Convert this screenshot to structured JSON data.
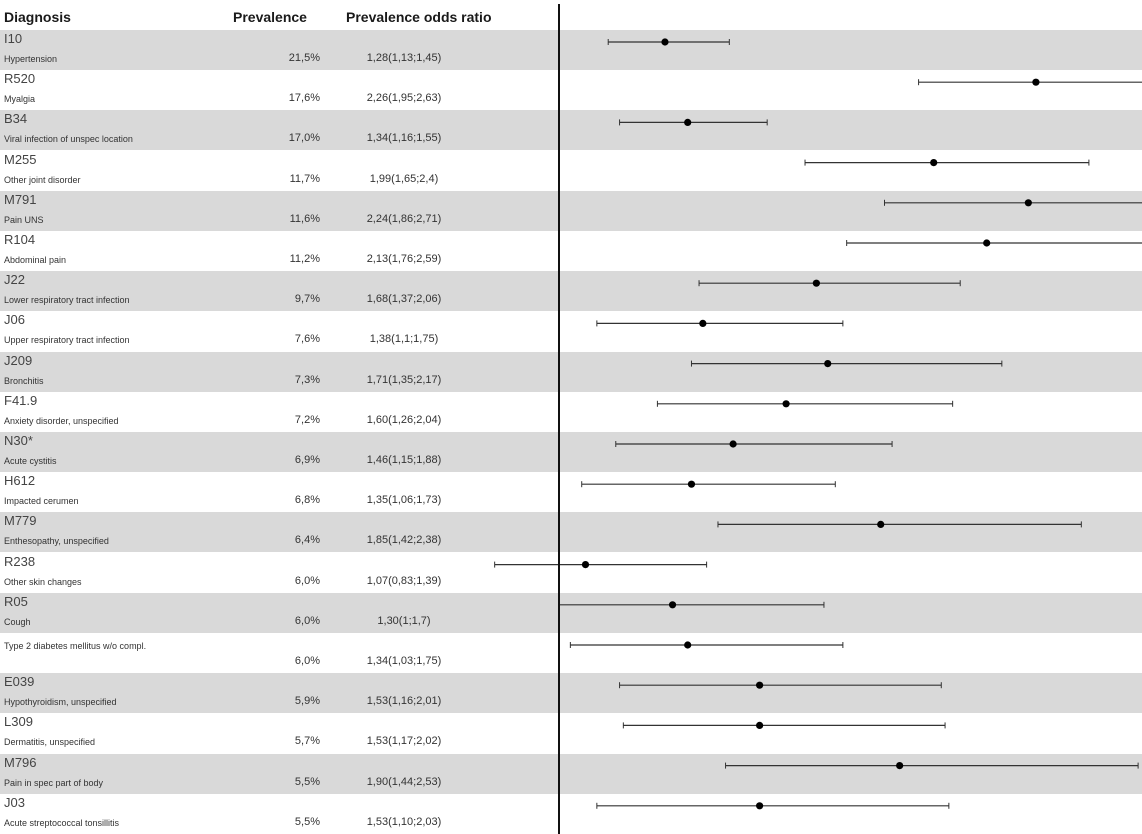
{
  "headers": {
    "diagnosis": "Diagnosis",
    "prevalence": "Prevalence",
    "por": "Prevalence odds ratio"
  },
  "chart_data": {
    "type": "forest",
    "x_reference": 1.0,
    "xlim": [
      0.69,
      2.94
    ],
    "grid": false,
    "rows": [
      {
        "code": "I10",
        "label": "Hypertension",
        "prevalence": "21,5%",
        "por_text": "1,28(1,13;1,45)",
        "estimate": 1.28,
        "lower": 1.13,
        "upper": 1.45
      },
      {
        "code": "R520",
        "label": "Myalgia",
        "prevalence": "17,6%",
        "por_text": "2,26(1,95;2,63)",
        "estimate": 2.26,
        "lower": 1.95,
        "upper": 2.63
      },
      {
        "code": "B34",
        "label": "Viral infection of unspec location",
        "prevalence": "17,0%",
        "por_text": "1,34(1,16;1,55)",
        "estimate": 1.34,
        "lower": 1.16,
        "upper": 1.55
      },
      {
        "code": "M255",
        "label": "Other joint disorder",
        "prevalence": "11,7%",
        "por_text": "1,99(1,65;2,4)",
        "estimate": 1.99,
        "lower": 1.65,
        "upper": 2.4
      },
      {
        "code": "M791",
        "label": "Pain UNS",
        "prevalence": "11,6%",
        "por_text": "2,24(1,86;2,71)",
        "estimate": 2.24,
        "lower": 1.86,
        "upper": 2.71
      },
      {
        "code": "R104",
        "label": "Abdominal pain",
        "prevalence": "11,2%",
        "por_text": "2,13(1,76;2,59)",
        "estimate": 2.13,
        "lower": 1.76,
        "upper": 2.59
      },
      {
        "code": "J22",
        "label": "Lower respiratory tract infection",
        "prevalence": "9,7%",
        "por_text": "1,68(1,37;2,06)",
        "estimate": 1.68,
        "lower": 1.37,
        "upper": 2.06
      },
      {
        "code": "J06",
        "label": "Upper respiratory tract infection",
        "prevalence": "7,6%",
        "por_text": "1,38(1,1;1,75)",
        "estimate": 1.38,
        "lower": 1.1,
        "upper": 1.75
      },
      {
        "code": "J209",
        "label": "Bronchitis",
        "prevalence": "7,3%",
        "por_text": "1,71(1,35;2,17)",
        "estimate": 1.71,
        "lower": 1.35,
        "upper": 2.17
      },
      {
        "code": "F41.9",
        "label": "Anxiety disorder, unspecified",
        "prevalence": "7,2%",
        "por_text": "1,60(1,26;2,04)",
        "estimate": 1.6,
        "lower": 1.26,
        "upper": 2.04
      },
      {
        "code": "N30*",
        "label": "Acute cystitis",
        "prevalence": "6,9%",
        "por_text": "1,46(1,15;1,88)",
        "estimate": 1.46,
        "lower": 1.15,
        "upper": 1.88
      },
      {
        "code": "H612",
        "label": "Impacted cerumen",
        "prevalence": "6,8%",
        "por_text": "1,35(1,06;1,73)",
        "estimate": 1.35,
        "lower": 1.06,
        "upper": 1.73
      },
      {
        "code": "M779",
        "label": "Enthesopathy, unspecified",
        "prevalence": "6,4%",
        "por_text": "1,85(1,42;2,38)",
        "estimate": 1.85,
        "lower": 1.42,
        "upper": 2.38
      },
      {
        "code": "R238",
        "label": "Other skin changes",
        "prevalence": "6,0%",
        "por_text": "1,07(0,83;1,39)",
        "estimate": 1.07,
        "lower": 0.83,
        "upper": 1.39
      },
      {
        "code": "R05",
        "label": "Cough",
        "prevalence": "6,0%",
        "por_text": "1,30(1;1,7)",
        "estimate": 1.3,
        "lower": 1.0,
        "upper": 1.7
      },
      {
        "code": "",
        "label": "Type 2 diabetes mellitus w/o compl.",
        "prevalence": "6,0%",
        "por_text": "1,34(1,03;1,75)",
        "estimate": 1.34,
        "lower": 1.03,
        "upper": 1.75
      },
      {
        "code": "E039",
        "label": "Hypothyroidism, unspecified",
        "prevalence": "5,9%",
        "por_text": "1,53(1,16;2,01)",
        "estimate": 1.53,
        "lower": 1.16,
        "upper": 2.01
      },
      {
        "code": "L309",
        "label": "Dermatitis, unspecified",
        "prevalence": "5,7%",
        "por_text": "1,53(1,17;2,02)",
        "estimate": 1.53,
        "lower": 1.17,
        "upper": 2.02
      },
      {
        "code": "M796",
        "label": "Pain in spec part of body",
        "prevalence": "5,5%",
        "por_text": "1,90(1,44;2,53)",
        "estimate": 1.9,
        "lower": 1.44,
        "upper": 2.53
      },
      {
        "code": "J03",
        "label": "Acute streptococcal tonsillitis",
        "prevalence": "5,5%",
        "por_text": "1,53(1,10;2,03)",
        "estimate": 1.53,
        "lower": 1.1,
        "upper": 2.03
      }
    ]
  }
}
